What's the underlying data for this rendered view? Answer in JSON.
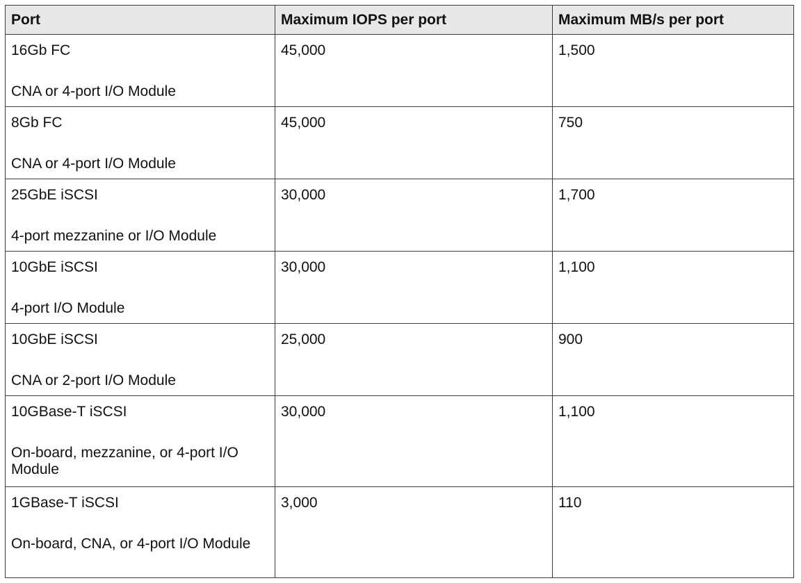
{
  "table": {
    "headers": [
      "Port",
      "Maximum IOPS per port",
      "Maximum MB/s per port"
    ],
    "rows": [
      {
        "port": "16Gb FC",
        "desc": "CNA or 4-port I/O Module",
        "iops": "45,000",
        "mbs": "1,500"
      },
      {
        "port": "8Gb FC",
        "desc": "CNA or 4-port I/O Module",
        "iops": "45,000",
        "mbs": "750"
      },
      {
        "port": "25GbE iSCSI",
        "desc": "4-port mezzanine or I/O Module",
        "iops": "30,000",
        "mbs": "1,700"
      },
      {
        "port": "10GbE iSCSI",
        "desc": "4-port I/O Module",
        "iops": "30,000",
        "mbs": "1,100"
      },
      {
        "port": "10GbE iSCSI",
        "desc": "CNA or 2-port I/O Module",
        "iops": "25,000",
        "mbs": "900"
      },
      {
        "port": "10GBase-T iSCSI",
        "desc": "On-board, mezzanine, or 4-port I/O Module",
        "iops": "30,000",
        "mbs": "1,100"
      },
      {
        "port": "1GBase-T iSCSI",
        "desc": "On-board, CNA, or 4-port I/O Module",
        "iops": "3,000",
        "mbs": "110"
      }
    ]
  }
}
